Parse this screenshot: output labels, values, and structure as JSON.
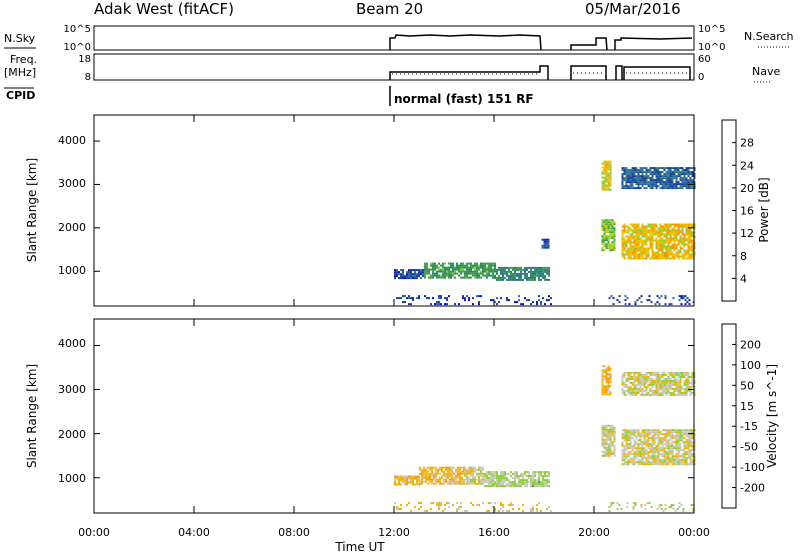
{
  "header": {
    "station": "Adak West (fitACF)",
    "beam": "Beam 20",
    "date": "05/Mar/2016"
  },
  "noise_panel": {
    "label": "N.Sky",
    "right_label": "N.Search",
    "left_ticks": [
      "10^5",
      "10^0"
    ],
    "right_ticks": [
      "10^5",
      "10^0"
    ]
  },
  "freq_panel": {
    "label_top": "Freq.",
    "label_bottom": "[MHz]",
    "left_ticks": [
      "18",
      "8"
    ],
    "right_ticks": [
      "60",
      "0"
    ],
    "right_label": "Nave"
  },
  "cpid_panel": {
    "label": "CPID",
    "mode": "normal (fast) 151 RF"
  },
  "time_axis": {
    "xlabel": "Time UT",
    "ticks": [
      "00:00",
      "04:00",
      "08:00",
      "12:00",
      "16:00",
      "20:00",
      "00:00"
    ]
  },
  "colors": {
    "power_scale": [
      "#0a0fd8",
      "#1b3f9f",
      "#2e6d9e",
      "#2e8b57",
      "#3ca14a",
      "#8fcf3a",
      "#f5c400",
      "#ff9900",
      "#ff5a00",
      "#ff0000"
    ],
    "velocity_scale": [
      "#ff0000",
      "#ff5a00",
      "#ff9900",
      "#f5b400",
      "#c8c8be",
      "#8fcf3a",
      "#3ca14a",
      "#2e6d9e",
      "#1b3fb0"
    ]
  },
  "chart_data": [
    {
      "type": "heatmap",
      "title": "",
      "ylabel": "Slant Range [km]",
      "xlabel": "",
      "ylim": [
        200,
        4600
      ],
      "y_ticks": [
        "1000",
        "2000",
        "3000",
        "4000"
      ],
      "colorbar_label": "Power [dB]",
      "colorbar_ticks": [
        "4",
        "8",
        "12",
        "16",
        "20",
        "24",
        "28"
      ],
      "colorbar_range": [
        0,
        32
      ],
      "regions": [
        {
          "t0": 12.0,
          "t1": 13.2,
          "r0": 850,
          "r1": 1050,
          "value": 5
        },
        {
          "t0": 13.2,
          "t1": 16.0,
          "r0": 850,
          "r1": 1200,
          "value": 13
        },
        {
          "t0": 16.0,
          "t1": 18.2,
          "r0": 800,
          "r1": 1100,
          "value": 11
        },
        {
          "t0": 17.9,
          "t1": 18.2,
          "r0": 1550,
          "r1": 1750,
          "value": 6
        },
        {
          "t0": 20.3,
          "t1": 20.7,
          "r0": 2900,
          "r1": 3550,
          "value": 20
        },
        {
          "t0": 21.1,
          "t1": 24.0,
          "r0": 2900,
          "r1": 3400,
          "value": 7
        },
        {
          "t0": 20.3,
          "t1": 20.8,
          "r0": 1500,
          "r1": 2200,
          "value": 17
        },
        {
          "t0": 21.1,
          "t1": 24.0,
          "r0": 1300,
          "r1": 2100,
          "value": 21
        },
        {
          "t0": 12.0,
          "t1": 18.3,
          "r0": 250,
          "r1": 450,
          "value": 4
        },
        {
          "t0": 20.5,
          "t1": 24.0,
          "r0": 250,
          "r1": 450,
          "value": 5
        }
      ]
    },
    {
      "type": "heatmap",
      "title": "",
      "ylabel": "Slant Range [km]",
      "xlabel": "Time UT",
      "ylim": [
        200,
        4600
      ],
      "y_ticks": [
        "1000",
        "2000",
        "3000",
        "4000"
      ],
      "colorbar_label": "Velocity [m s^-1]",
      "colorbar_ticks": [
        "-200",
        "-100",
        "-50",
        "-15",
        "15",
        "50",
        "100",
        "200"
      ],
      "colorbar_range": [
        -250,
        250
      ],
      "regions": [
        {
          "t0": 12.0,
          "t1": 13.0,
          "r0": 850,
          "r1": 1050,
          "value": -60
        },
        {
          "t0": 13.0,
          "t1": 14.8,
          "r0": 850,
          "r1": 1250,
          "value": -55
        },
        {
          "t0": 14.8,
          "t1": 15.6,
          "r0": 850,
          "r1": 1250,
          "value": 0
        },
        {
          "t0": 15.6,
          "t1": 18.2,
          "r0": 800,
          "r1": 1150,
          "value": 30
        },
        {
          "t0": 20.3,
          "t1": 20.7,
          "r0": 2900,
          "r1": 3550,
          "value": -70
        },
        {
          "t0": 21.1,
          "t1": 24.0,
          "r0": 2900,
          "r1": 3400,
          "value": 0
        },
        {
          "t0": 20.3,
          "t1": 20.8,
          "r0": 1500,
          "r1": 2200,
          "value": 0
        },
        {
          "t0": 21.1,
          "t1": 24.0,
          "r0": 1300,
          "r1": 2100,
          "value": 0
        },
        {
          "t0": 12.0,
          "t1": 18.3,
          "r0": 250,
          "r1": 450,
          "value": -30
        },
        {
          "t0": 20.5,
          "t1": 24.0,
          "r0": 250,
          "r1": 450,
          "value": 10
        }
      ]
    }
  ]
}
